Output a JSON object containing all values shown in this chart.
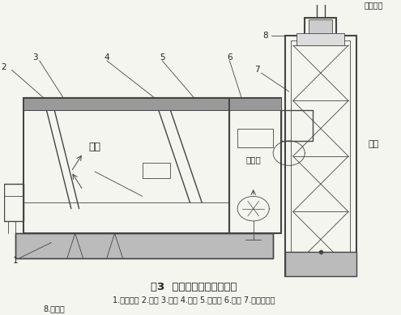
{
  "title": "图3  热管式热风炉结构示意",
  "caption_line1": "1.往复炉排 2.前拱 3.炉膛 4.后拱 5.沉降室 6.热骨 7.热管换热器",
  "caption_line2": "8.碳钝管",
  "labels": [
    "1",
    "2",
    "3",
    "4",
    "5",
    "6",
    "7",
    "8"
  ],
  "text_yanqi": "烟气",
  "text_lenqongqi": "冷空气",
  "text_refeng": "热风",
  "text_yanqi_chukou": "烟气出口",
  "bg_color": "#f5f5f0",
  "line_color": "#444444",
  "text_color": "#222222",
  "fig_width": 4.95,
  "fig_height": 3.89
}
